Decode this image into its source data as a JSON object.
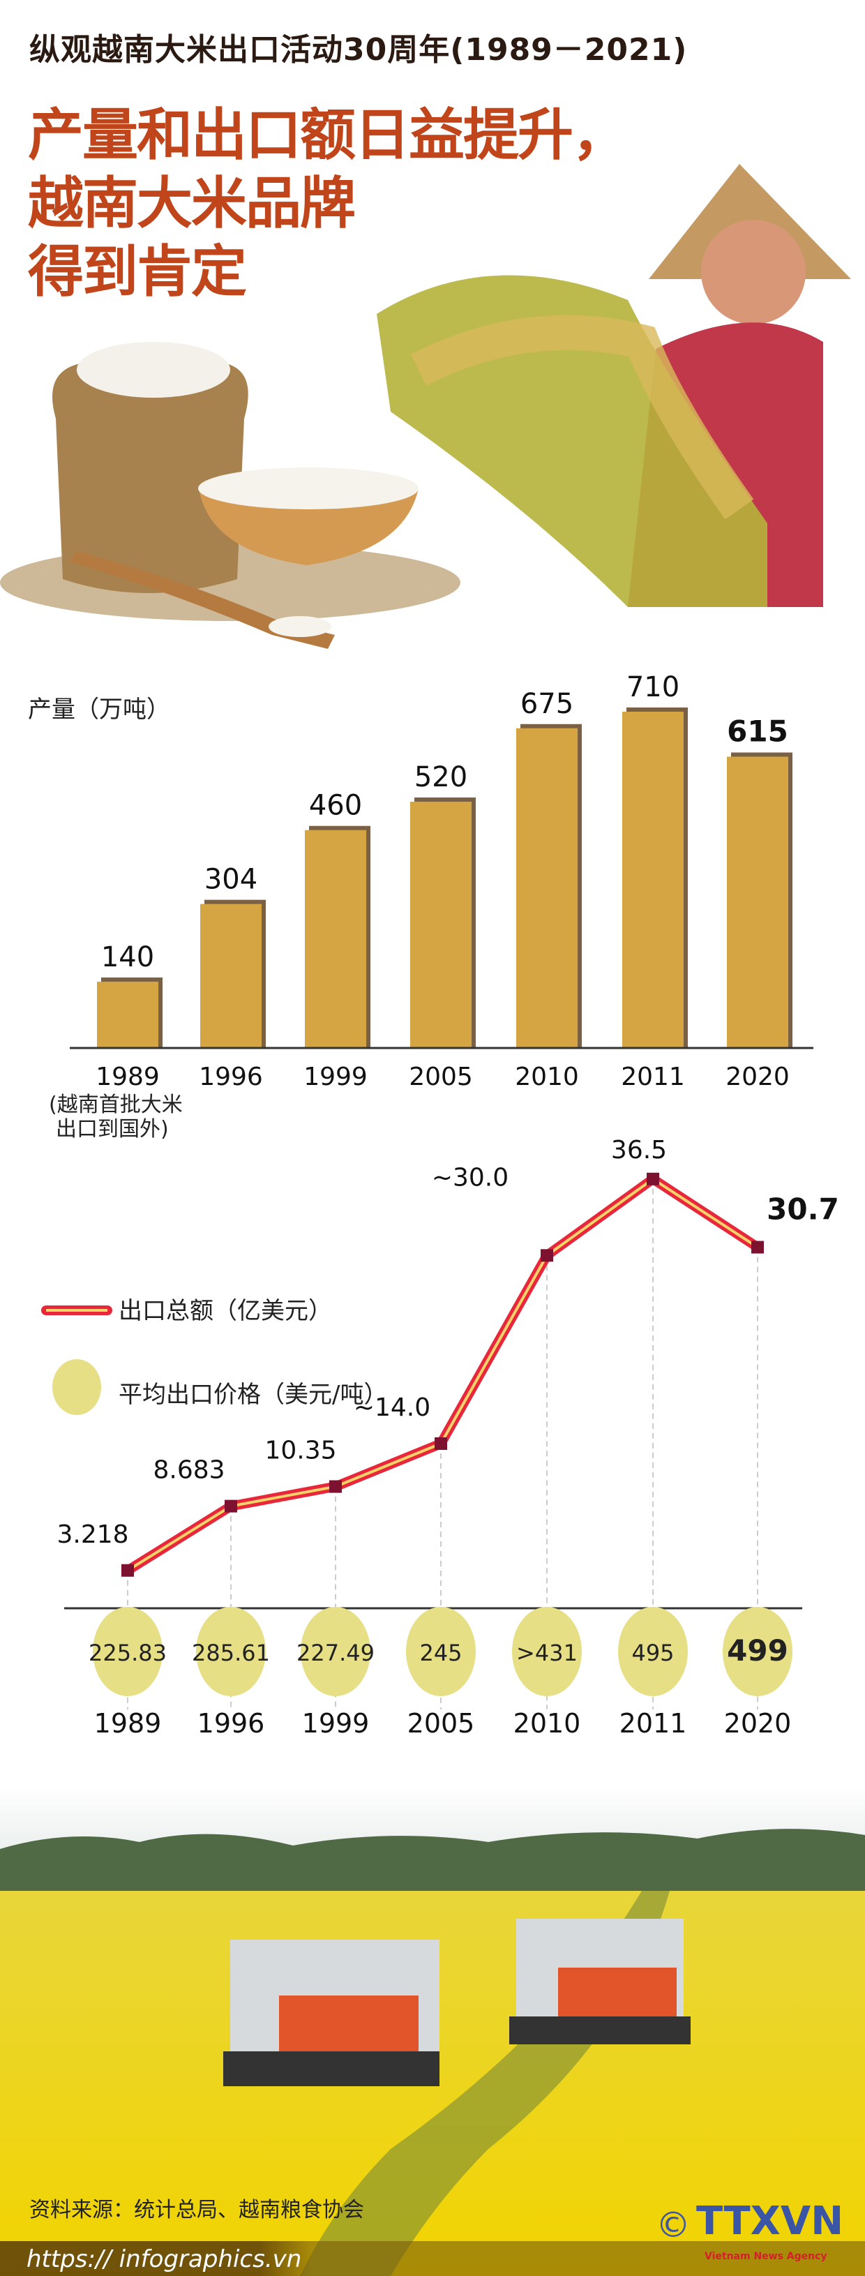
{
  "header": {
    "subtitle": "纵观越南大米出口活动30周年(1989－2021)",
    "title_lines": [
      "产量和出口额日益提升，",
      "越南大米品牌",
      "得到肯定"
    ]
  },
  "colors": {
    "title": "#c1451a",
    "bar": "#d4a542",
    "bar_shadow": "#7a6145",
    "line": "#e8283a",
    "line_inner": "#f5d36a",
    "marker": "#7d1230",
    "circle": "#e6df86"
  },
  "chart_data": [
    {
      "type": "bar",
      "ylabel": "产量（万吨）",
      "categories": [
        "1989",
        "1996",
        "1999",
        "2005",
        "2010",
        "2011",
        "2020"
      ],
      "values": [
        140,
        304,
        460,
        520,
        675,
        710,
        615
      ],
      "value_labels": [
        "140",
        "304",
        "460",
        "520",
        "675",
        "710",
        "615"
      ],
      "highlight": "2020",
      "annotation": {
        "category": "1989",
        "text": [
          "(越南首批大米",
          "出口到国外)"
        ]
      },
      "ylim": [
        0,
        710
      ],
      "grid": false
    },
    {
      "type": "line",
      "categories": [
        "1989",
        "1996",
        "1999",
        "2005",
        "2010",
        "2011",
        "2020"
      ],
      "series": [
        {
          "name": "出口总额（亿美元）",
          "values": [
            3.218,
            8.683,
            10.35,
            14.0,
            30.0,
            36.5,
            30.7
          ],
          "labels": [
            "3.218",
            "8.683",
            "10.35",
            "~14.0",
            "~30.0",
            "36.5",
            "30.7"
          ]
        },
        {
          "name": "平均出口价格（美元/吨）",
          "values": [
            225.83,
            285.61,
            227.49,
            245,
            431,
            495,
            499
          ],
          "labels": [
            "225.83",
            "285.61",
            "227.49",
            "245",
            ">431",
            "495",
            "499"
          ]
        }
      ],
      "highlight": "2020",
      "ylim": [
        0,
        36.5
      ],
      "legend": "left",
      "grid": false
    }
  ],
  "footer": {
    "source": "资料来源：统计总局、越南粮食协会",
    "url": "https:// infographics.vn",
    "logo_text": "TTXVN",
    "logo_sub": "Vietnam News Agency",
    "copyright": "©"
  }
}
